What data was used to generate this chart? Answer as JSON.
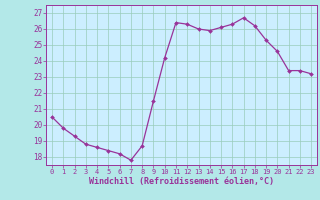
{
  "x": [
    0,
    1,
    2,
    3,
    4,
    5,
    6,
    7,
    8,
    9,
    10,
    11,
    12,
    13,
    14,
    15,
    16,
    17,
    18,
    19,
    20,
    21,
    22,
    23
  ],
  "y": [
    20.5,
    19.8,
    19.3,
    18.8,
    18.6,
    18.4,
    18.2,
    17.8,
    18.7,
    21.5,
    24.2,
    26.4,
    26.3,
    26.0,
    25.9,
    26.1,
    26.3,
    26.7,
    26.2,
    25.3,
    24.6,
    23.4,
    23.4,
    23.2
  ],
  "line_color": "#993399",
  "marker_color": "#993399",
  "bg_color": "#b3e8e8",
  "plot_bg_color": "#cceeff",
  "grid_color": "#99ccbb",
  "xlabel": "Windchill (Refroidissement éolien,°C)",
  "xlabel_color": "#993399",
  "tick_color": "#993399",
  "spine_color": "#993399",
  "ylim": [
    17.5,
    27.5
  ],
  "yticks": [
    18,
    19,
    20,
    21,
    22,
    23,
    24,
    25,
    26,
    27
  ],
  "xticks": [
    0,
    1,
    2,
    3,
    4,
    5,
    6,
    7,
    8,
    9,
    10,
    11,
    12,
    13,
    14,
    15,
    16,
    17,
    18,
    19,
    20,
    21,
    22,
    23
  ]
}
